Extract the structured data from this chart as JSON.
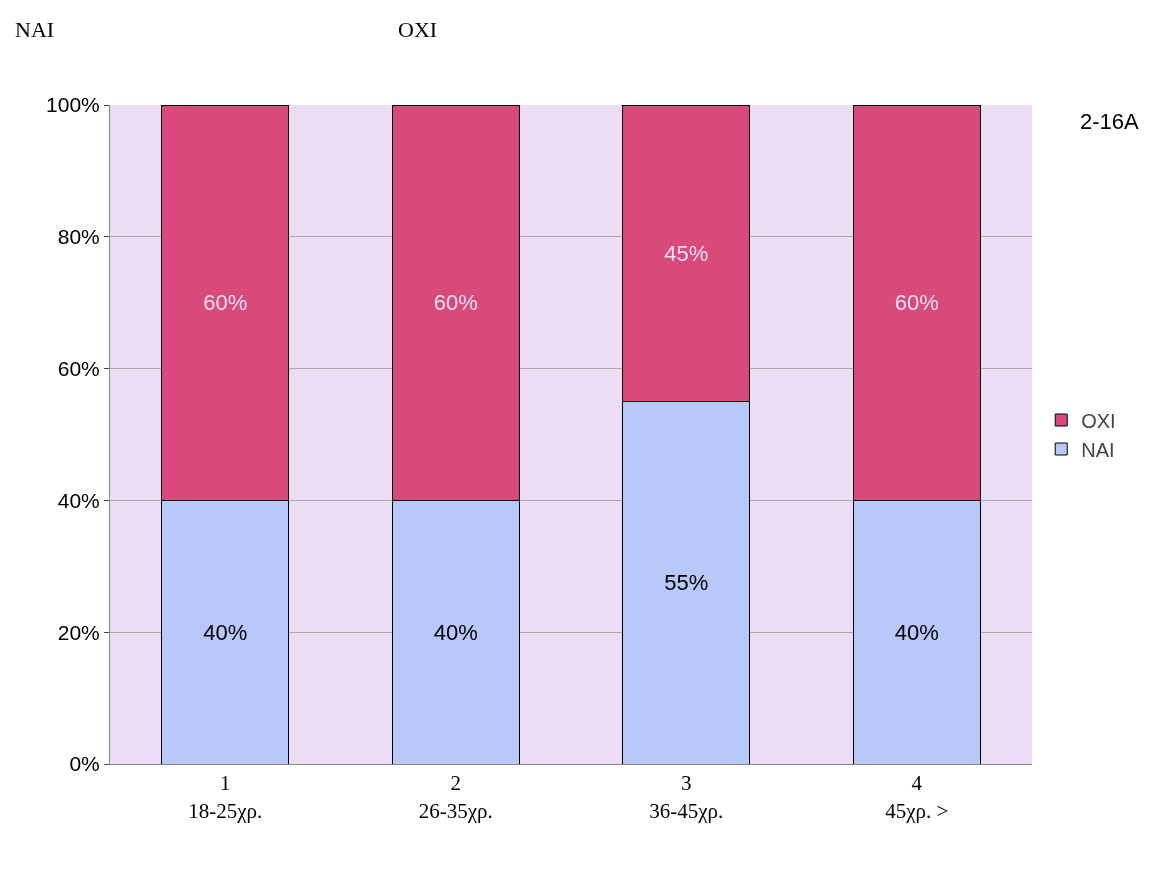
{
  "chart_data": {
    "type": "bar",
    "stacked": true,
    "categories": [
      "1\n18-25χρ.",
      "2\n26-35χρ.",
      "3\n36-45χρ.",
      "4\n45χρ. >"
    ],
    "series": [
      {
        "name": "NAI",
        "color": "#b8c8f8",
        "values": [
          40,
          40,
          55,
          40
        ],
        "value_labels": [
          "40%",
          "40%",
          "55%",
          "40%"
        ]
      },
      {
        "name": "OXI",
        "color": "#d84a7c",
        "values": [
          60,
          60,
          45,
          60
        ],
        "value_labels": [
          "60%",
          "60%",
          "45%",
          "60%"
        ]
      }
    ],
    "ylim": [
      0,
      100
    ],
    "yticks": [
      {
        "value": 0,
        "label": "0%"
      },
      {
        "value": 20,
        "label": "20%"
      },
      {
        "value": 40,
        "label": "40%"
      },
      {
        "value": 60,
        "label": "60%"
      },
      {
        "value": 80,
        "label": "80%"
      },
      {
        "value": 100,
        "label": "100%"
      }
    ],
    "grid": "y",
    "legend": "right",
    "annotations": [
      "NAI",
      "OXI",
      "2-16A"
    ]
  }
}
